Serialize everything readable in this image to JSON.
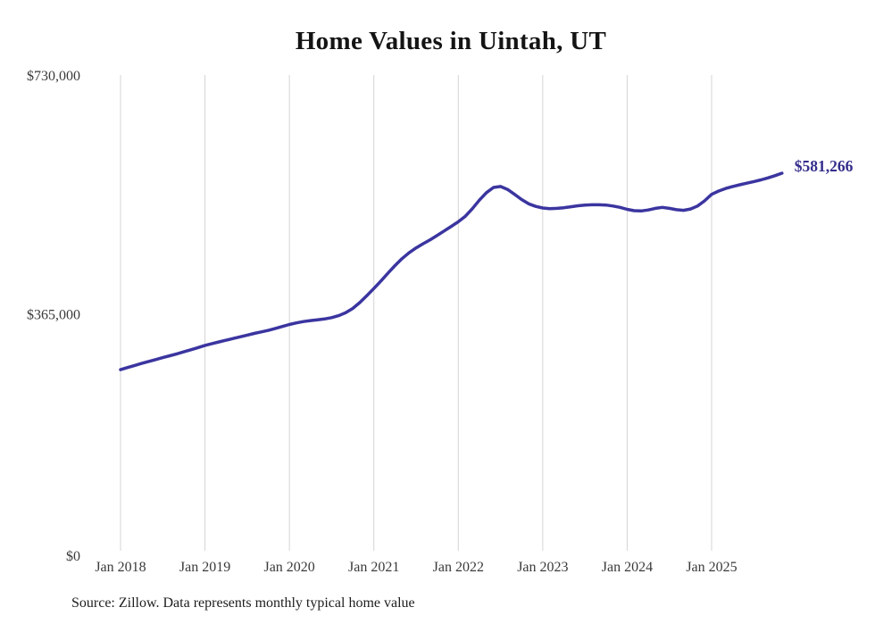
{
  "title": "Home Values in Uintah, UT",
  "source_note": "Source: Zillow. Data represents monthly typical home value",
  "colors": {
    "line": "#3b35a0",
    "end_label": "#332d8c",
    "grid": "#d4d4d4",
    "axis_text": "#3a3a3a",
    "title_text": "#141414",
    "source_text": "#1e1e1e",
    "background": "#ffffff"
  },
  "chart_data": {
    "type": "line",
    "title": "Home Values in Uintah, UT",
    "series_name": "Typical home value",
    "x_unit": "month",
    "x_start": "Jan 2018",
    "x_end": "Nov 2025",
    "y_max": 730000,
    "y_ticks": [
      {
        "value": 0,
        "label": "$0"
      },
      {
        "value": 365000,
        "label": "$365,000"
      },
      {
        "value": 730000,
        "label": "$730,000"
      }
    ],
    "x_ticks": [
      {
        "month_index": 0,
        "label": "Jan 2018"
      },
      {
        "month_index": 12,
        "label": "Jan 2019"
      },
      {
        "month_index": 24,
        "label": "Jan 2020"
      },
      {
        "month_index": 36,
        "label": "Jan 2021"
      },
      {
        "month_index": 48,
        "label": "Jan 2022"
      },
      {
        "month_index": 60,
        "label": "Jan 2023"
      },
      {
        "month_index": 72,
        "label": "Jan 2024"
      },
      {
        "month_index": 84,
        "label": "Jan 2025"
      }
    ],
    "grid": "vertical-only",
    "legend": "none",
    "end_label": "$581,266",
    "last_value": 581266,
    "values": [
      281000,
      284200,
      287400,
      290500,
      293500,
      296400,
      299300,
      302200,
      305100,
      308200,
      311400,
      314700,
      318000,
      320800,
      323400,
      326000,
      328600,
      331200,
      333800,
      336300,
      338700,
      341000,
      344000,
      347000,
      350000,
      352500,
      354500,
      356000,
      357200,
      358500,
      360500,
      363500,
      368000,
      374500,
      383500,
      394000,
      405000,
      416500,
      428500,
      440000,
      450500,
      459500,
      467000,
      473500,
      479500,
      486000,
      493000,
      500000,
      507000,
      515500,
      527000,
      540000,
      551500,
      559500,
      561000,
      556500,
      549000,
      541000,
      534500,
      530500,
      528000,
      527000,
      527500,
      528500,
      530000,
      531500,
      532500,
      533000,
      533000,
      532500,
      531000,
      529000,
      526000,
      524000,
      523500,
      525000,
      527500,
      529000,
      527500,
      525500,
      524500,
      526500,
      531000,
      539000,
      549000,
      554000,
      558000,
      561000,
      563500,
      566000,
      568500,
      571000,
      574000,
      577500,
      581266
    ]
  }
}
